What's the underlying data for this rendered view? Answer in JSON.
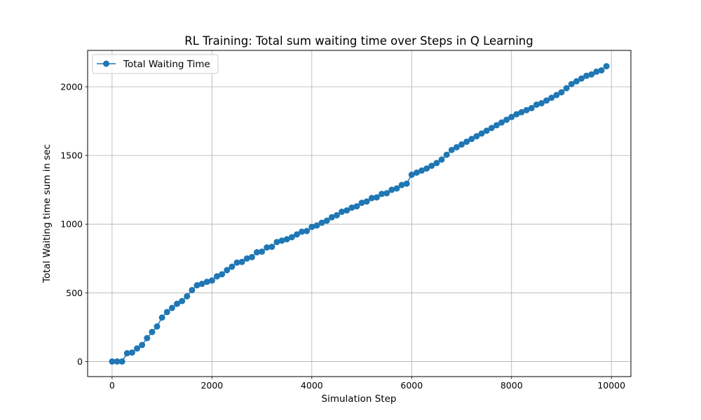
{
  "chart_data": {
    "type": "line",
    "title": "RL Training: Total sum waiting time over Steps in Q Learning",
    "xlabel": "Simulation Step",
    "ylabel": "Total Waiting time sum in sec",
    "xlim": [
      -490,
      10390
    ],
    "ylim": [
      -110,
      2265
    ],
    "xticks": [
      0,
      2000,
      4000,
      6000,
      8000,
      10000
    ],
    "yticks": [
      0,
      500,
      1000,
      1500,
      2000
    ],
    "grid": true,
    "legend_position": "top-left",
    "series": [
      {
        "name": "Total Waiting Time",
        "color": "#1f77b4",
        "marker": "circle",
        "x": [
          0,
          100,
          200,
          300,
          400,
          500,
          600,
          700,
          800,
          900,
          1000,
          1100,
          1200,
          1300,
          1400,
          1500,
          1600,
          1700,
          1800,
          1900,
          2000,
          2100,
          2200,
          2300,
          2400,
          2500,
          2600,
          2700,
          2800,
          2900,
          3000,
          3100,
          3200,
          3300,
          3400,
          3500,
          3600,
          3700,
          3800,
          3900,
          4000,
          4100,
          4200,
          4300,
          4400,
          4500,
          4600,
          4700,
          4800,
          4900,
          5000,
          5100,
          5200,
          5300,
          5400,
          5500,
          5600,
          5700,
          5800,
          5900,
          6000,
          6100,
          6200,
          6300,
          6400,
          6500,
          6600,
          6700,
          6800,
          6900,
          7000,
          7100,
          7200,
          7300,
          7400,
          7500,
          7600,
          7700,
          7800,
          7900,
          8000,
          8100,
          8200,
          8300,
          8400,
          8500,
          8600,
          8700,
          8800,
          8900,
          9000,
          9100,
          9200,
          9300,
          9400,
          9500,
          9600,
          9700,
          9800,
          9900
        ],
        "y": [
          0,
          0,
          0,
          60,
          65,
          95,
          120,
          170,
          215,
          255,
          320,
          360,
          390,
          420,
          440,
          475,
          520,
          555,
          565,
          580,
          590,
          620,
          635,
          665,
          690,
          720,
          725,
          750,
          760,
          795,
          800,
          830,
          835,
          870,
          880,
          890,
          905,
          925,
          945,
          950,
          980,
          990,
          1010,
          1025,
          1050,
          1065,
          1090,
          1100,
          1120,
          1130,
          1155,
          1165,
          1190,
          1195,
          1220,
          1225,
          1250,
          1260,
          1285,
          1295,
          1360,
          1375,
          1390,
          1405,
          1425,
          1445,
          1470,
          1505,
          1540,
          1560,
          1580,
          1600,
          1620,
          1640,
          1660,
          1680,
          1700,
          1720,
          1740,
          1760,
          1780,
          1800,
          1815,
          1830,
          1845,
          1870,
          1880,
          1900,
          1920,
          1940,
          1960,
          1990,
          2020,
          2040,
          2060,
          2080,
          2090,
          2110,
          2120,
          2150
        ]
      }
    ]
  }
}
